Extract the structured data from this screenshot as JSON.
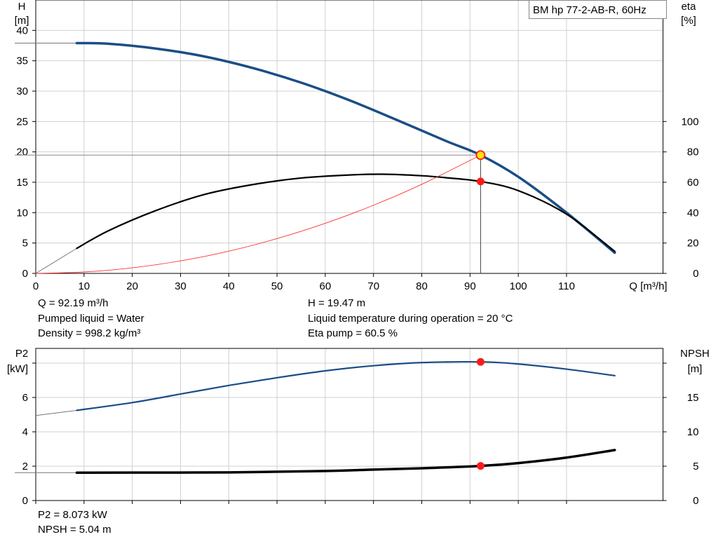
{
  "title_box": "BM hp 77-2-AB-R, 60Hz",
  "colors": {
    "head_curve": "#1a4e86",
    "eta_curve": "#000000",
    "system_curve": "#ff3030",
    "power_curve": "#1a4e86",
    "npsh_curve": "#000000",
    "marker": "#ff1a1a",
    "duty_marker_fill": "#ffe600",
    "grid": "#d0d0d0"
  },
  "info_top": {
    "q": "Q = 92.19 m³/h",
    "liquid": "Pumped liquid = Water",
    "density": "Density = 998.2 kg/m³",
    "h": "H = 19.47 m",
    "temp": "Liquid temperature during operation = 20 °C",
    "eta": "Eta pump = 60.5 %"
  },
  "info_bottom": {
    "p2": "P2 = 8.073 kW",
    "npsh": "NPSH = 5.04 m"
  },
  "chart_data": [
    {
      "type": "line",
      "x_axis": {
        "label": "Q [m³/h]",
        "range": [
          0,
          130
        ],
        "ticks": [
          0,
          10,
          20,
          30,
          40,
          50,
          60,
          70,
          80,
          90,
          100,
          110
        ]
      },
      "y_left": {
        "label_line1": "H",
        "label_line2": "[m]",
        "range": [
          0,
          45
        ],
        "ticks": [
          0,
          5,
          10,
          15,
          20,
          25,
          30,
          35,
          40
        ]
      },
      "y_right": {
        "label_line1": "eta",
        "label_line2": "[%]",
        "range": [
          0,
          180
        ],
        "ticks": [
          0,
          20,
          40,
          60,
          80,
          100
        ]
      },
      "grid": true,
      "series": [
        {
          "axis": "left",
          "style": "head",
          "x": [
            8.5,
            15,
            25,
            35,
            45,
            55,
            65,
            75,
            85,
            92.19,
            100,
            110,
            120
          ],
          "y": [
            37.9,
            37.8,
            37.0,
            35.7,
            33.8,
            31.4,
            28.5,
            25.2,
            21.8,
            19.47,
            15.9,
            10.0,
            3.4
          ]
        },
        {
          "axis": "right",
          "style": "eta",
          "x": [
            8.5,
            15,
            25,
            35,
            45,
            55,
            65,
            72,
            80,
            85,
            92.19,
            100,
            110,
            120
          ],
          "y": [
            16.5,
            28,
            41.5,
            52,
            58.5,
            62.8,
            64.8,
            65.3,
            64.3,
            63.0,
            60.5,
            54.5,
            39,
            14.5
          ]
        },
        {
          "axis": "left",
          "style": "system",
          "x": [
            0,
            10,
            20,
            30,
            40,
            50,
            60,
            70,
            80,
            92.19
          ],
          "y": [
            0,
            0.23,
            0.92,
            2.06,
            3.66,
            5.73,
            8.24,
            11.22,
            14.66,
            19.47
          ]
        }
      ],
      "guides": {
        "head_line_level": 37.9,
        "eta_guide_start": [
          0,
          0
        ],
        "duty_level": 19.47
      },
      "operating_point": {
        "q": 92.19,
        "h": 19.47,
        "eta": 60.5
      }
    },
    {
      "type": "line",
      "x_axis": {
        "range": [
          0,
          130
        ],
        "ticks": [
          0,
          10,
          20,
          30,
          40,
          50,
          60,
          70,
          80,
          90,
          100,
          110
        ]
      },
      "y_left": {
        "label_line1": "P2",
        "label_line2": "[kW]",
        "range": [
          0,
          9
        ],
        "ticks": [
          0,
          2,
          4,
          6
        ],
        "tick_marks": [
          0,
          2,
          4,
          6,
          8
        ]
      },
      "y_right": {
        "label_line1": "NPSH",
        "label_line2": "[m]",
        "range": [
          0,
          22.5
        ],
        "ticks": [
          0,
          5,
          10,
          15
        ],
        "tick_marks": [
          0,
          5,
          10,
          15,
          20
        ]
      },
      "grid": true,
      "series": [
        {
          "axis": "left",
          "style": "power",
          "x": [
            8.5,
            20,
            30,
            40,
            50,
            60,
            70,
            80,
            92.19,
            100,
            110,
            120
          ],
          "y": [
            5.25,
            5.7,
            6.2,
            6.7,
            7.15,
            7.55,
            7.85,
            8.03,
            8.073,
            7.95,
            7.65,
            7.27
          ]
        },
        {
          "axis": "right",
          "style": "npsh",
          "x": [
            8.5,
            20,
            40,
            60,
            70,
            80,
            92.19,
            100,
            110,
            120
          ],
          "y": [
            4.05,
            4.07,
            4.1,
            4.3,
            4.5,
            4.7,
            5.04,
            5.45,
            6.25,
            7.35
          ]
        }
      ],
      "guides": {
        "p2_start": 4.95,
        "npsh_start": 4.05
      },
      "operating_point": {
        "q": 92.19,
        "p2": 8.073,
        "npsh": 5.04
      }
    }
  ]
}
